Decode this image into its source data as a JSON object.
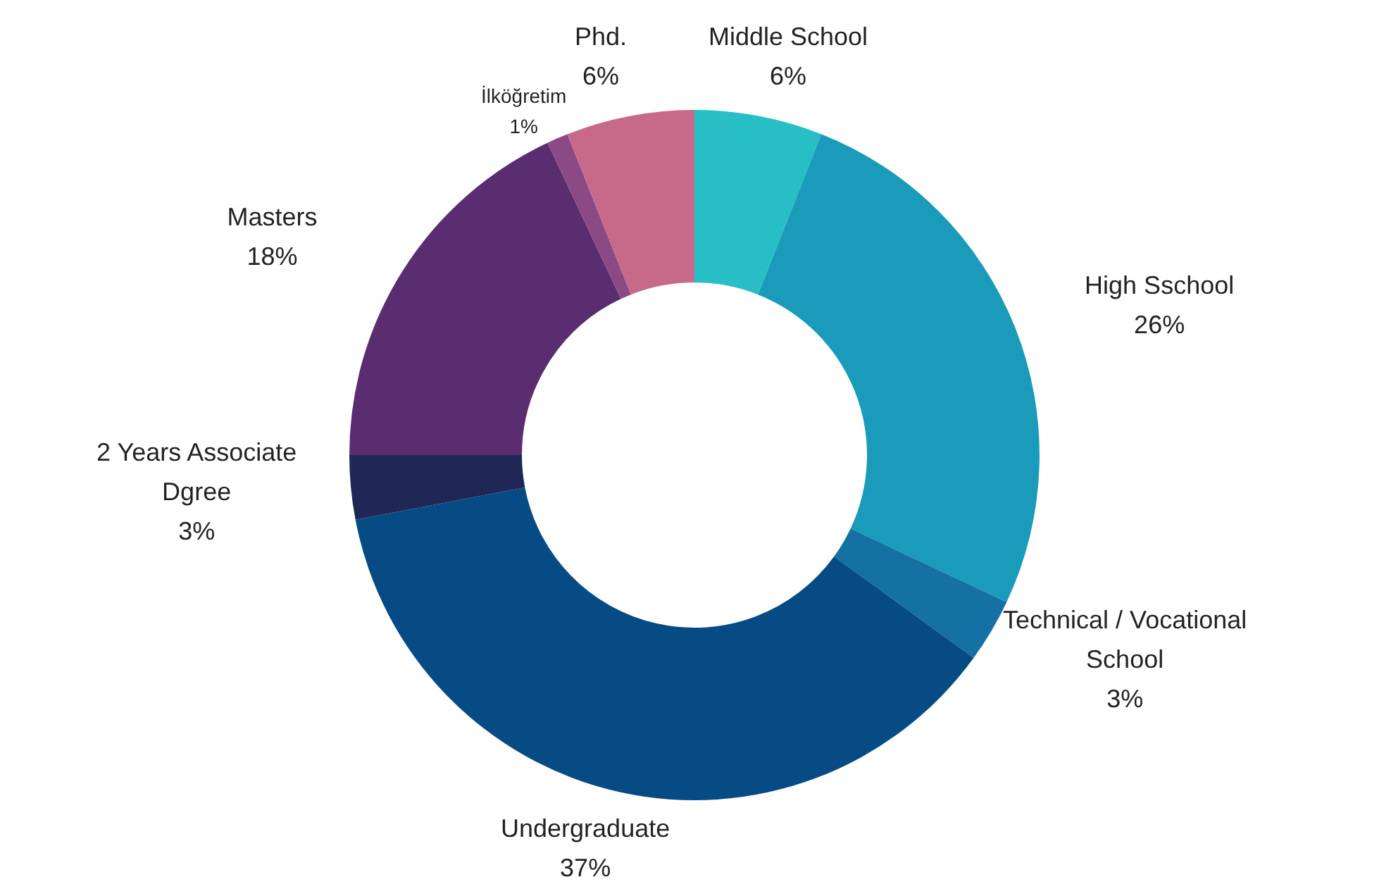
{
  "chart_data": {
    "type": "donut",
    "categories": [
      "Middle School",
      "High Sschool",
      "Technical / Vocational School",
      "Undergraduate",
      "2 Years Associate Dgree",
      "Masters",
      "İlköğretim",
      "Phd."
    ],
    "values": [
      6,
      26,
      3,
      37,
      3,
      18,
      1,
      6
    ],
    "value_labels": [
      "6%",
      "26%",
      "3%",
      "37%",
      "3%",
      "18%",
      "1%",
      "6%"
    ],
    "colors": [
      "#27bec6",
      "#1a9bba",
      "#1570a3",
      "#074b84",
      "#1e2755",
      "#5a2d70",
      "#8b4a86",
      "#c76a8a"
    ],
    "legend": false
  }
}
